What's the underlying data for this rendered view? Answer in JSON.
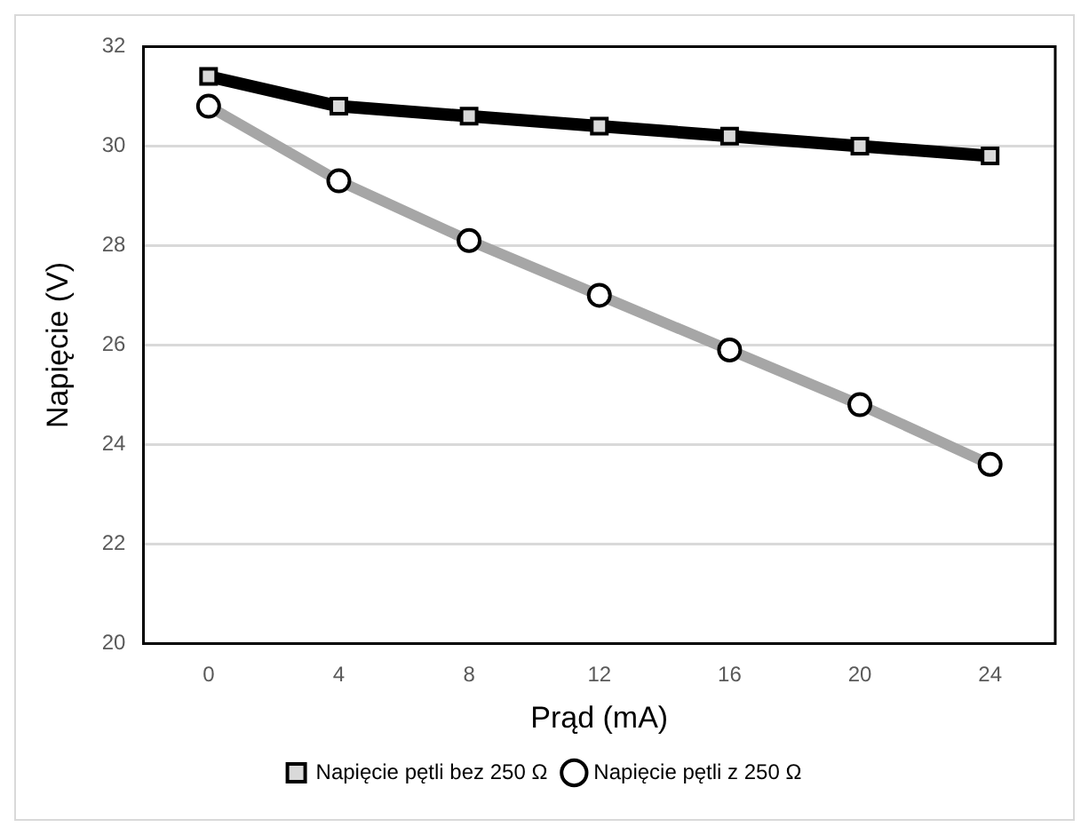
{
  "chart_data": {
    "type": "line",
    "xlabel": "Prąd (mA)",
    "ylabel": "Napięcie (V)",
    "categories": [
      "0",
      "4",
      "8",
      "12",
      "16",
      "20",
      "24"
    ],
    "series": [
      {
        "name": "Napięcie pętli bez 250 Ω",
        "color": "#000000",
        "marker": "square",
        "values": [
          31.4,
          30.8,
          30.6,
          30.4,
          30.2,
          30.0,
          29.8
        ]
      },
      {
        "name": "Napięcie pętli z 250 Ω",
        "color": "#a6a6a6",
        "marker": "circle",
        "values": [
          30.8,
          29.3,
          28.1,
          27.0,
          25.9,
          24.8,
          23.6
        ]
      }
    ],
    "ylim": [
      20,
      32
    ],
    "yticks": [
      20,
      22,
      24,
      26,
      28,
      30,
      32
    ],
    "grid": "y",
    "legend": "bottom"
  }
}
